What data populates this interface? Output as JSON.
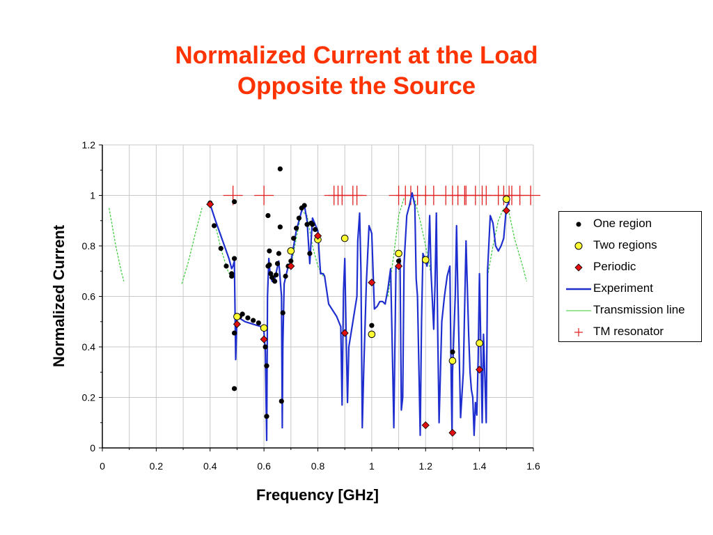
{
  "title": {
    "line1": "Normalized Current at the Load",
    "line2": "Opposite the Source"
  },
  "colors": {
    "title": "#ff3300",
    "experiment": "#1f2fcf",
    "transmission": "#33cc33",
    "tm": "#e02020",
    "periodic": "#e01010",
    "two_regions": "#ffff33",
    "one_region": "#000000"
  },
  "chart_data": {
    "type": "line",
    "xlabel": "Frequency [GHz]",
    "ylabel": "Normalized Current",
    "xlim": [
      0,
      1.6
    ],
    "ylim": [
      0,
      1.2
    ],
    "xticks": [
      "0",
      "0.2",
      "0.4",
      "0.6",
      "0.8",
      "1",
      "1.2",
      "1.4",
      "1.6"
    ],
    "yticks": [
      "0",
      "0.2",
      "0.4",
      "0.6",
      "0.8",
      "1",
      "1.2"
    ],
    "grid": true,
    "legend_position": "right",
    "series": [
      {
        "name": "One region",
        "style": "black-dot",
        "points": [
          [
            0.4,
            0.97
          ],
          [
            0.415,
            0.88
          ],
          [
            0.44,
            0.79
          ],
          [
            0.46,
            0.72
          ],
          [
            0.48,
            0.68
          ],
          [
            0.48,
            0.69
          ],
          [
            0.49,
            0.75
          ],
          [
            0.49,
            0.975
          ],
          [
            0.49,
            0.455
          ],
          [
            0.49,
            0.235
          ],
          [
            0.51,
            0.52
          ],
          [
            0.52,
            0.53
          ],
          [
            0.54,
            0.515
          ],
          [
            0.56,
            0.505
          ],
          [
            0.58,
            0.495
          ],
          [
            0.6,
            0.475
          ],
          [
            0.605,
            0.4
          ],
          [
            0.61,
            0.325
          ],
          [
            0.61,
            0.125
          ],
          [
            0.615,
            0.92
          ],
          [
            0.615,
            0.72
          ],
          [
            0.62,
            0.78
          ],
          [
            0.62,
            0.725
          ],
          [
            0.625,
            0.69
          ],
          [
            0.63,
            0.675
          ],
          [
            0.64,
            0.66
          ],
          [
            0.645,
            0.685
          ],
          [
            0.65,
            0.73
          ],
          [
            0.655,
            0.77
          ],
          [
            0.66,
            0.875
          ],
          [
            0.66,
            1.105
          ],
          [
            0.665,
            0.185
          ],
          [
            0.67,
            0.535
          ],
          [
            0.68,
            0.68
          ],
          [
            0.69,
            0.72
          ],
          [
            0.7,
            0.74
          ],
          [
            0.71,
            0.83
          ],
          [
            0.72,
            0.87
          ],
          [
            0.73,
            0.91
          ],
          [
            0.74,
            0.95
          ],
          [
            0.75,
            0.96
          ],
          [
            0.76,
            0.885
          ],
          [
            0.77,
            0.77
          ],
          [
            0.775,
            0.89
          ],
          [
            0.78,
            0.885
          ],
          [
            0.79,
            0.865
          ],
          [
            0.8,
            0.84
          ],
          [
            1.0,
            0.485
          ],
          [
            1.1,
            0.74
          ],
          [
            1.3,
            0.38
          ]
        ]
      },
      {
        "name": "Two regions",
        "style": "yellow-circle",
        "points": [
          [
            0.5,
            0.52
          ],
          [
            0.6,
            0.475
          ],
          [
            0.7,
            0.78
          ],
          [
            0.8,
            0.825
          ],
          [
            0.9,
            0.83
          ],
          [
            1.0,
            0.45
          ],
          [
            1.1,
            0.77
          ],
          [
            1.2,
            0.745
          ],
          [
            1.3,
            0.345
          ],
          [
            1.4,
            0.415
          ],
          [
            1.5,
            0.985
          ]
        ]
      },
      {
        "name": "Periodic",
        "style": "red-diamond",
        "points": [
          [
            0.4,
            0.965
          ],
          [
            0.5,
            0.49
          ],
          [
            0.6,
            0.43
          ],
          [
            0.7,
            0.72
          ],
          [
            0.8,
            0.84
          ],
          [
            0.9,
            0.455
          ],
          [
            1.0,
            0.655
          ],
          [
            1.1,
            0.72
          ],
          [
            1.2,
            0.09
          ],
          [
            1.3,
            0.06
          ],
          [
            1.4,
            0.31
          ],
          [
            1.5,
            0.94
          ]
        ]
      },
      {
        "name": "Experiment",
        "style": "blue-line",
        "points": [
          [
            0.4,
            0.965
          ],
          [
            0.42,
            0.9
          ],
          [
            0.45,
            0.81
          ],
          [
            0.47,
            0.75
          ],
          [
            0.48,
            0.71
          ],
          [
            0.485,
            0.72
          ],
          [
            0.49,
            0.74
          ],
          [
            0.495,
            0.35
          ],
          [
            0.5,
            0.52
          ],
          [
            0.53,
            0.5
          ],
          [
            0.56,
            0.49
          ],
          [
            0.59,
            0.48
          ],
          [
            0.6,
            0.46
          ],
          [
            0.605,
            0.38
          ],
          [
            0.61,
            0.03
          ],
          [
            0.613,
            0.6
          ],
          [
            0.618,
            0.75
          ],
          [
            0.622,
            0.7
          ],
          [
            0.63,
            0.66
          ],
          [
            0.64,
            0.67
          ],
          [
            0.655,
            0.74
          ],
          [
            0.665,
            0.6
          ],
          [
            0.668,
            0.08
          ],
          [
            0.67,
            0.4
          ],
          [
            0.675,
            0.65
          ],
          [
            0.69,
            0.72
          ],
          [
            0.7,
            0.735
          ],
          [
            0.72,
            0.86
          ],
          [
            0.74,
            0.94
          ],
          [
            0.75,
            0.96
          ],
          [
            0.76,
            0.9
          ],
          [
            0.77,
            0.73
          ],
          [
            0.78,
            0.91
          ],
          [
            0.8,
            0.86
          ],
          [
            0.805,
            0.77
          ],
          [
            0.81,
            0.69
          ],
          [
            0.82,
            0.69
          ],
          [
            0.825,
            0.68
          ],
          [
            0.84,
            0.57
          ],
          [
            0.87,
            0.52
          ],
          [
            0.885,
            0.48
          ],
          [
            0.89,
            0.17
          ],
          [
            0.895,
            0.62
          ],
          [
            0.9,
            0.75
          ],
          [
            0.905,
            0.45
          ],
          [
            0.91,
            0.18
          ],
          [
            0.915,
            0.4
          ],
          [
            0.93,
            0.5
          ],
          [
            0.945,
            0.6
          ],
          [
            0.948,
            0.82
          ],
          [
            0.955,
            0.93
          ],
          [
            0.96,
            0.7
          ],
          [
            0.965,
            0.08
          ],
          [
            0.97,
            0.3
          ],
          [
            0.98,
            0.65
          ],
          [
            0.99,
            0.88
          ],
          [
            1.0,
            0.85
          ],
          [
            1.01,
            0.55
          ],
          [
            1.02,
            0.56
          ],
          [
            1.03,
            0.58
          ],
          [
            1.04,
            0.58
          ],
          [
            1.05,
            0.57
          ],
          [
            1.06,
            0.63
          ],
          [
            1.07,
            0.71
          ],
          [
            1.078,
            0.3
          ],
          [
            1.082,
            0.08
          ],
          [
            1.09,
            0.72
          ],
          [
            1.1,
            0.73
          ],
          [
            1.105,
            0.75
          ],
          [
            1.11,
            0.15
          ],
          [
            1.115,
            0.2
          ],
          [
            1.12,
            0.73
          ],
          [
            1.13,
            0.92
          ],
          [
            1.14,
            0.96
          ],
          [
            1.15,
            1.01
          ],
          [
            1.16,
            0.96
          ],
          [
            1.165,
            0.67
          ],
          [
            1.17,
            0.6
          ],
          [
            1.18,
            0.05
          ],
          [
            1.185,
            0.5
          ],
          [
            1.19,
            0.77
          ],
          [
            1.2,
            0.74
          ],
          [
            1.205,
            0.72
          ],
          [
            1.21,
            0.75
          ],
          [
            1.215,
            0.92
          ],
          [
            1.22,
            0.7
          ],
          [
            1.23,
            0.47
          ],
          [
            1.235,
            0.65
          ],
          [
            1.24,
            0.93
          ],
          [
            1.245,
            0.45
          ],
          [
            1.25,
            0.1
          ],
          [
            1.26,
            0.5
          ],
          [
            1.27,
            0.6
          ],
          [
            1.28,
            0.68
          ],
          [
            1.29,
            0.72
          ],
          [
            1.295,
            0.27
          ],
          [
            1.298,
            0.06
          ],
          [
            1.3,
            0.3
          ],
          [
            1.31,
            0.6
          ],
          [
            1.315,
            0.88
          ],
          [
            1.32,
            0.6
          ],
          [
            1.33,
            0.12
          ],
          [
            1.34,
            0.3
          ],
          [
            1.35,
            0.82
          ],
          [
            1.36,
            0.45
          ],
          [
            1.365,
            0.3
          ],
          [
            1.37,
            0.23
          ],
          [
            1.375,
            0.2
          ],
          [
            1.38,
            0.05
          ],
          [
            1.385,
            0.18
          ],
          [
            1.39,
            0.13
          ],
          [
            1.395,
            0.35
          ],
          [
            1.4,
            0.69
          ],
          [
            1.405,
            0.4
          ],
          [
            1.41,
            0.1
          ],
          [
            1.415,
            0.45
          ],
          [
            1.42,
            0.28
          ],
          [
            1.425,
            0.1
          ],
          [
            1.43,
            0.7
          ],
          [
            1.44,
            0.92
          ],
          [
            1.45,
            0.89
          ],
          [
            1.46,
            0.8
          ],
          [
            1.47,
            0.78
          ],
          [
            1.48,
            0.8
          ],
          [
            1.49,
            0.83
          ],
          [
            1.5,
            0.955
          ],
          [
            1.51,
            0.975
          ]
        ]
      },
      {
        "name": "Transmission line",
        "style": "green-dashed",
        "segments": [
          [
            [
              0.025,
              0.95
            ],
            [
              0.05,
              0.8
            ],
            [
              0.07,
              0.7
            ],
            [
              0.08,
              0.66
            ]
          ],
          [
            [
              0.295,
              0.65
            ],
            [
              0.32,
              0.74
            ],
            [
              0.35,
              0.87
            ],
            [
              0.37,
              0.95
            ]
          ],
          [
            [
              0.42,
              0.88
            ],
            [
              0.44,
              0.79
            ],
            [
              0.46,
              0.72
            ],
            [
              0.47,
              0.69
            ]
          ],
          [
            [
              0.7,
              0.72
            ],
            [
              0.72,
              0.83
            ],
            [
              0.74,
              0.94
            ],
            [
              0.76,
              0.92
            ],
            [
              0.78,
              0.8
            ],
            [
              0.8,
              0.72
            ],
            [
              0.82,
              0.68
            ]
          ],
          [
            [
              1.06,
              0.6
            ],
            [
              1.08,
              0.75
            ],
            [
              1.1,
              0.92
            ],
            [
              1.12,
              0.99
            ]
          ],
          [
            [
              1.16,
              0.98
            ],
            [
              1.18,
              0.9
            ],
            [
              1.2,
              0.8
            ],
            [
              1.22,
              0.69
            ]
          ],
          [
            [
              1.43,
              0.68
            ],
            [
              1.45,
              0.8
            ],
            [
              1.47,
              0.9
            ],
            [
              1.49,
              0.95
            ]
          ],
          [
            [
              1.51,
              0.93
            ],
            [
              1.53,
              0.83
            ],
            [
              1.56,
              0.72
            ],
            [
              1.575,
              0.66
            ]
          ]
        ]
      },
      {
        "name": "TM resonator",
        "style": "red-plus",
        "y": 1.0,
        "x": [
          0.485,
          0.6,
          0.86,
          0.875,
          0.89,
          0.93,
          0.945,
          1.1,
          1.125,
          1.145,
          1.17,
          1.2,
          1.23,
          1.275,
          1.3,
          1.32,
          1.345,
          1.35,
          1.385,
          1.41,
          1.425,
          1.47,
          1.49,
          1.51,
          1.52,
          1.55,
          1.59
        ]
      }
    ]
  }
}
